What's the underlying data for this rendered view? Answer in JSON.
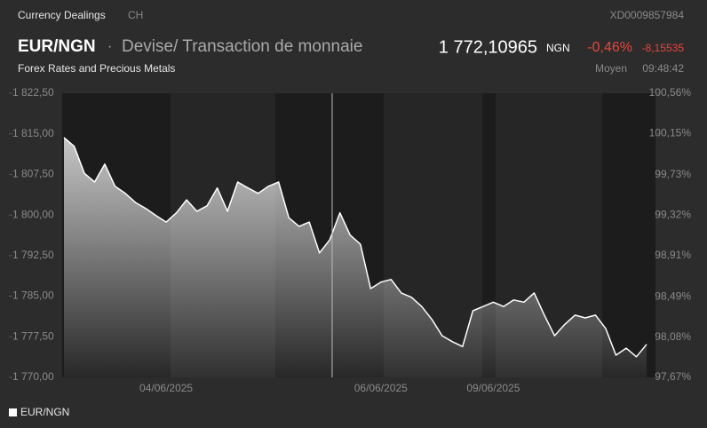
{
  "header": {
    "source": "Currency Dealings",
    "country": "CH",
    "isin": "XD0009857984",
    "symbol": "EUR/NGN",
    "separator": "·",
    "description": "Devise/ Transaction de monnaie",
    "price": "1 772,10965",
    "currency": "NGN",
    "change_pct": "-0,46%",
    "change_abs": "-8,15535",
    "category": "Forex Rates and Precious Metals",
    "price_type": "Moyen",
    "time": "09:48:42"
  },
  "chart_data": {
    "type": "line",
    "categories": [
      null,
      null,
      null,
      null,
      null,
      null,
      null,
      null,
      null,
      null,
      "04/06/2025",
      null,
      null,
      null,
      null,
      null,
      null,
      null,
      null,
      null,
      null,
      null,
      null,
      null,
      null,
      null,
      null,
      null,
      null,
      null,
      null,
      "06/06/2025",
      null,
      null,
      null,
      null,
      null,
      null,
      null,
      null,
      null,
      null,
      "09/06/2025",
      null,
      null,
      null,
      null,
      null,
      null,
      null,
      null,
      null,
      null,
      null,
      null,
      null,
      null,
      null
    ],
    "series": [
      {
        "name": "EUR/NGN",
        "color": "#ffffff",
        "values": [
          1814.3,
          1812.7,
          1807.7,
          1806.1,
          1809.4,
          1805.3,
          1804.0,
          1802.3,
          1801.2,
          1799.9,
          1798.7,
          1800.4,
          1802.8,
          1800.7,
          1801.7,
          1805.0,
          1800.7,
          1806.1,
          1805.0,
          1804.0,
          1805.3,
          1806.1,
          1799.5,
          1797.9,
          1798.7,
          1793.0,
          1795.4,
          1800.4,
          1796.3,
          1794.6,
          1786.4,
          1787.6,
          1788.1,
          1785.6,
          1784.8,
          1783.1,
          1780.7,
          1777.7,
          1776.6,
          1775.7,
          1782.3,
          1783.1,
          1783.9,
          1783.1,
          1784.3,
          1783.9,
          1785.6,
          1781.5,
          1777.7,
          1779.8,
          1781.5,
          1781.0,
          1781.5,
          1779.0,
          1774.1,
          1775.4,
          1773.8,
          1776.1
        ]
      }
    ],
    "ylim": [
      1770,
      1822.5
    ],
    "yticks": [
      {
        "value": 1822.5,
        "label": "1 822,50"
      },
      {
        "value": 1815,
        "label": "1 815,00"
      },
      {
        "value": 1807.5,
        "label": "1 807,50"
      },
      {
        "value": 1800,
        "label": "1 800,00"
      },
      {
        "value": 1792.5,
        "label": "1 792,50"
      },
      {
        "value": 1785,
        "label": "1 785,00"
      },
      {
        "value": 1777.5,
        "label": "1 777,50"
      },
      {
        "value": 1770,
        "label": "1 770,00"
      }
    ],
    "y2lim": [
      97.67,
      100.56
    ],
    "y2ticks": [
      {
        "value": 100.56,
        "label": "100,56%"
      },
      {
        "value": 100.15,
        "label": "100,15%"
      },
      {
        "value": 99.73,
        "label": "99,73%"
      },
      {
        "value": 99.32,
        "label": "99,32%"
      },
      {
        "value": 98.91,
        "label": "98,91%"
      },
      {
        "value": 98.49,
        "label": "98,49%"
      },
      {
        "value": 98.08,
        "label": "98,08%"
      },
      {
        "value": 97.67,
        "label": "97,67%"
      }
    ]
  }
}
